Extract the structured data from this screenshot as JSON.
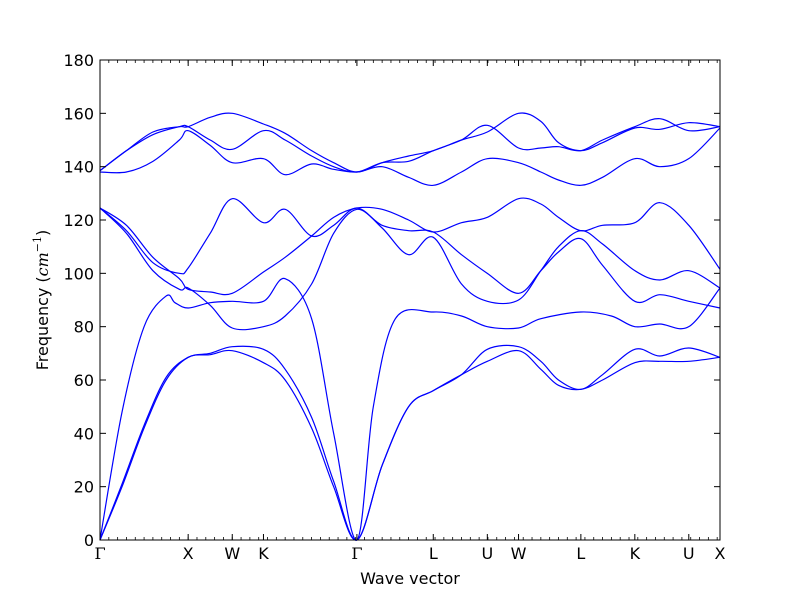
{
  "chart_data": {
    "type": "line",
    "title": "",
    "xlabel": "Wave vector",
    "ylabel": {
      "text": "Frequency",
      "unit_open": "(",
      "unit_base": "cm",
      "unit_exp": "−1",
      "unit_close": ")"
    },
    "ylim": [
      0,
      180
    ],
    "y_ticks": [
      "0",
      "20",
      "40",
      "60",
      "80",
      "100",
      "120",
      "140",
      "160",
      "180"
    ],
    "x_ticks": [
      {
        "label": "Γ",
        "x": 0
      },
      {
        "label": "X",
        "x": 1.0
      },
      {
        "label": "W",
        "x": 1.5
      },
      {
        "label": "K",
        "x": 1.854
      },
      {
        "label": "Γ",
        "x": 2.914
      },
      {
        "label": "L",
        "x": 3.78
      },
      {
        "label": "U",
        "x": 4.393
      },
      {
        "label": "W",
        "x": 4.747
      },
      {
        "label": "L",
        "x": 5.454
      },
      {
        "label": "K",
        "x": 6.066
      },
      {
        "label": "U",
        "x": 6.678
      },
      {
        "label": "X",
        "x": 7.032
      }
    ],
    "xlim": [
      0,
      7.032
    ],
    "line_color": "#0000ff",
    "grid": false,
    "legend": "none",
    "series": [
      {
        "x": [
          0,
          0.25,
          0.5,
          0.75,
          1.0,
          1.25,
          1.5,
          1.854,
          2.1,
          2.4,
          2.65,
          2.914,
          3.2,
          3.5,
          3.78,
          4.1,
          4.393,
          4.747,
          5.0,
          5.2,
          5.454,
          5.7,
          6.066,
          6.35,
          6.678,
          7.032
        ],
        "y": [
          0,
          20,
          42,
          60,
          68.5,
          69.5,
          71,
          66.5,
          60,
          42,
          20,
          0,
          28,
          50,
          56,
          62,
          67,
          71,
          64,
          58,
          56.5,
          60,
          66.5,
          67,
          67,
          68.5
        ]
      },
      {
        "x": [
          0,
          0.25,
          0.5,
          0.75,
          1.0,
          1.25,
          1.5,
          1.854,
          2.1,
          2.4,
          2.65,
          2.914,
          3.2,
          3.5,
          3.78,
          4.1,
          4.393,
          4.747,
          5.0,
          5.2,
          5.454,
          5.7,
          6.066,
          6.35,
          6.678,
          7.032
        ],
        "y": [
          0,
          21,
          43,
          61,
          68.5,
          70,
          72.5,
          71.5,
          64,
          46,
          22,
          0,
          28,
          50,
          56,
          62,
          71.5,
          72.5,
          67,
          60,
          56.5,
          62,
          71.5,
          69,
          72,
          68.5
        ]
      },
      {
        "x": [
          0,
          0.25,
          0.5,
          0.75,
          0.85,
          1.0,
          1.25,
          1.5,
          1.854,
          2.1,
          2.4,
          2.65,
          2.914,
          3.1,
          3.35,
          3.78,
          4.1,
          4.393,
          4.747,
          5.0,
          5.454,
          5.8,
          6.066,
          6.35,
          6.678,
          7.032
        ],
        "y": [
          0,
          48,
          80,
          91.5,
          89,
          87,
          89,
          89.5,
          89.5,
          98,
          83,
          40,
          0,
          50,
          83,
          85.5,
          84,
          80,
          79.5,
          83,
          85.5,
          84,
          80,
          81,
          80,
          94.5
        ]
      },
      {
        "x": [
          0,
          0.3,
          0.6,
          0.9,
          1.0,
          1.25,
          1.5,
          1.854,
          2.1,
          2.4,
          2.65,
          2.914,
          3.2,
          3.5,
          3.78,
          4.1,
          4.393,
          4.747,
          5.0,
          5.2,
          5.454,
          5.7,
          6.066,
          6.35,
          6.678,
          7.032
        ],
        "y": [
          124.5,
          115,
          101,
          94,
          94.5,
          88,
          79.5,
          80,
          84,
          96,
          115,
          124,
          118,
          116,
          115.5,
          107,
          100,
          92.5,
          101,
          108,
          113,
          103,
          89.5,
          92,
          89.5,
          87
        ]
      },
      {
        "x": [
          0,
          0.3,
          0.6,
          0.9,
          1.0,
          1.25,
          1.5,
          1.854,
          2.1,
          2.4,
          2.65,
          2.914,
          3.2,
          3.5,
          3.78,
          4.1,
          4.393,
          4.747,
          5.0,
          5.2,
          5.454,
          5.7,
          6.066,
          6.35,
          6.678,
          7.032
        ],
        "y": [
          124.5,
          116,
          104,
          100,
          102,
          115,
          128,
          119,
          124,
          114,
          118,
          124.5,
          117,
          107,
          113.5,
          96,
          89.5,
          90,
          101,
          110,
          116,
          111,
          101,
          97.5,
          101,
          94.5
        ]
      },
      {
        "x": [
          0,
          0.3,
          0.6,
          0.9,
          1.0,
          1.25,
          1.5,
          1.854,
          2.1,
          2.4,
          2.65,
          2.914,
          3.2,
          3.5,
          3.78,
          4.1,
          4.393,
          4.747,
          5.0,
          5.2,
          5.454,
          5.7,
          6.066,
          6.35,
          6.678,
          7.032
        ],
        "y": [
          124.5,
          118,
          106,
          98,
          94,
          93,
          92.5,
          100.5,
          106,
          114,
          121,
          124.5,
          124,
          120,
          115.5,
          119,
          121,
          128,
          126,
          121,
          116,
          118,
          119,
          126.5,
          118,
          101.5
        ]
      },
      {
        "x": [
          0,
          0.3,
          0.6,
          0.9,
          1.0,
          1.25,
          1.5,
          1.854,
          2.1,
          2.4,
          2.65,
          2.914,
          3.2,
          3.5,
          3.78,
          4.1,
          4.393,
          4.747,
          5.0,
          5.2,
          5.454,
          5.7,
          6.066,
          6.35,
          6.678,
          7.032
        ],
        "y": [
          138,
          138,
          142,
          150,
          153.5,
          148,
          141.5,
          143,
          137,
          141,
          139,
          138,
          140,
          136,
          133,
          138,
          143,
          141.5,
          138,
          135,
          133,
          136,
          143,
          140,
          143,
          154.5
        ]
      },
      {
        "x": [
          0,
          0.3,
          0.6,
          0.9,
          1.0,
          1.25,
          1.5,
          1.854,
          2.1,
          2.4,
          2.65,
          2.914,
          3.2,
          3.5,
          3.78,
          4.1,
          4.393,
          4.747,
          5.0,
          5.2,
          5.454,
          5.7,
          6.066,
          6.35,
          6.678,
          7.032
        ],
        "y": [
          138.5,
          146,
          152,
          155,
          155,
          150,
          146.5,
          153.5,
          150,
          144,
          140,
          138,
          141.5,
          142,
          146,
          150,
          155.5,
          147,
          147,
          147.5,
          146,
          150,
          155,
          158,
          153.5,
          155
        ]
      },
      {
        "x": [
          0,
          0.3,
          0.6,
          0.9,
          1.0,
          1.25,
          1.5,
          1.854,
          2.1,
          2.4,
          2.65,
          2.914,
          3.2,
          3.5,
          3.78,
          4.1,
          4.393,
          4.747,
          5.0,
          5.2,
          5.454,
          5.7,
          6.066,
          6.35,
          6.678,
          7.032
        ],
        "y": [
          138.5,
          146,
          153,
          155,
          155,
          158.5,
          160,
          156,
          152.5,
          146,
          141.5,
          138,
          141.5,
          144,
          146,
          150,
          153,
          160,
          157,
          149,
          146,
          149,
          154.5,
          154,
          156.5,
          155
        ]
      }
    ]
  }
}
